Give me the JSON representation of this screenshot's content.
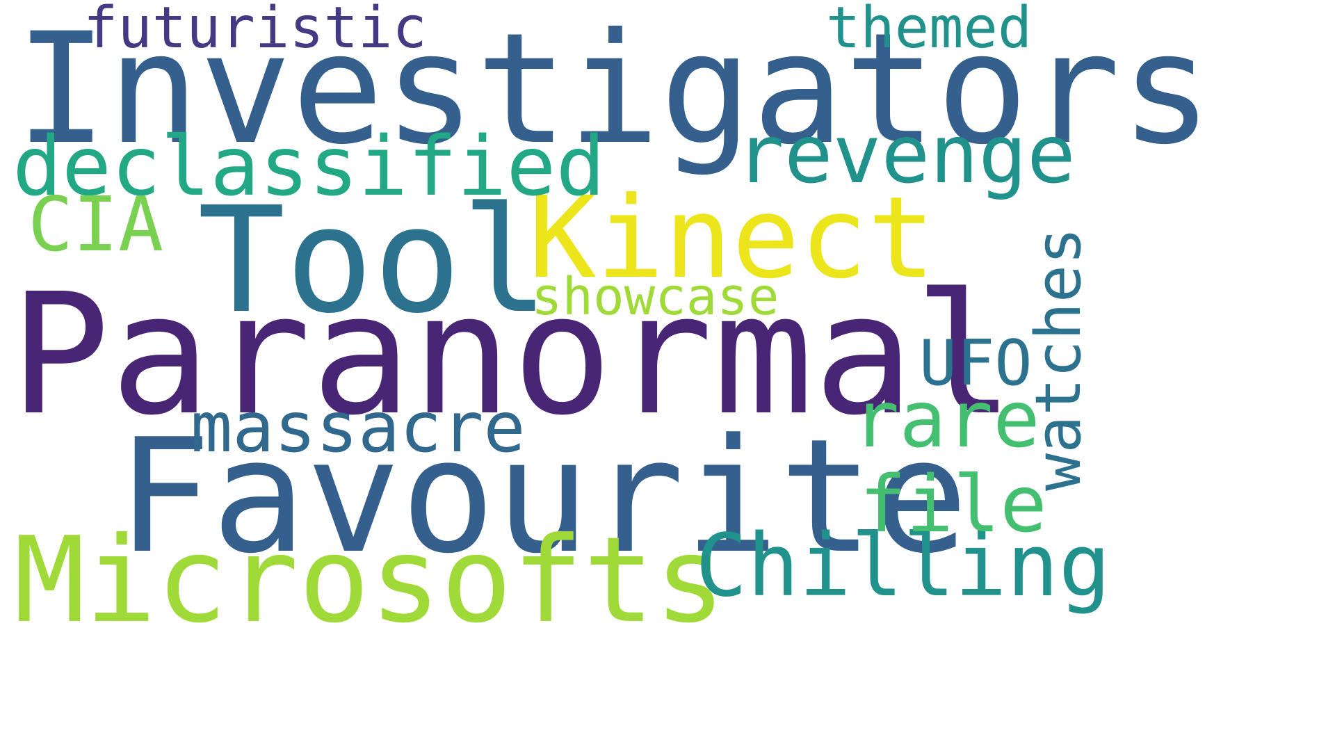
{
  "words": [
    {
      "id": "investigators",
      "text": "Investigators",
      "color": "#355f8d"
    },
    {
      "id": "paranormal",
      "text": "Paranormal",
      "color": "#482575"
    },
    {
      "id": "favourite",
      "text": "Favourite",
      "color": "#355f8d"
    },
    {
      "id": "tool",
      "text": "Tool",
      "color": "#2c728e"
    },
    {
      "id": "kinect",
      "text": "Kinect",
      "color": "#ece51b"
    },
    {
      "id": "microsofts",
      "text": "Microsofts",
      "color": "#a0da39"
    },
    {
      "id": "declassified",
      "text": "declassified",
      "color": "#22a884"
    },
    {
      "id": "revenge",
      "text": "revenge",
      "color": "#21918c"
    },
    {
      "id": "chilling",
      "text": "Chilling",
      "color": "#21918c"
    },
    {
      "id": "futuristic",
      "text": "futuristic",
      "color": "#443983"
    },
    {
      "id": "themed",
      "text": "themed",
      "color": "#21918c"
    },
    {
      "id": "cia",
      "text": "CIA",
      "color": "#7ad151"
    },
    {
      "id": "showcase",
      "text": "showcase",
      "color": "#a0da39"
    },
    {
      "id": "massacre",
      "text": "massacre",
      "color": "#31688e"
    },
    {
      "id": "rare",
      "text": "rare",
      "color": "#44bf70"
    },
    {
      "id": "ufo",
      "text": "UFO",
      "color": "#2c728e"
    },
    {
      "id": "file",
      "text": "file",
      "color": "#44bf70"
    },
    {
      "id": "watches",
      "text": "watches",
      "color": "#2c728e"
    }
  ]
}
